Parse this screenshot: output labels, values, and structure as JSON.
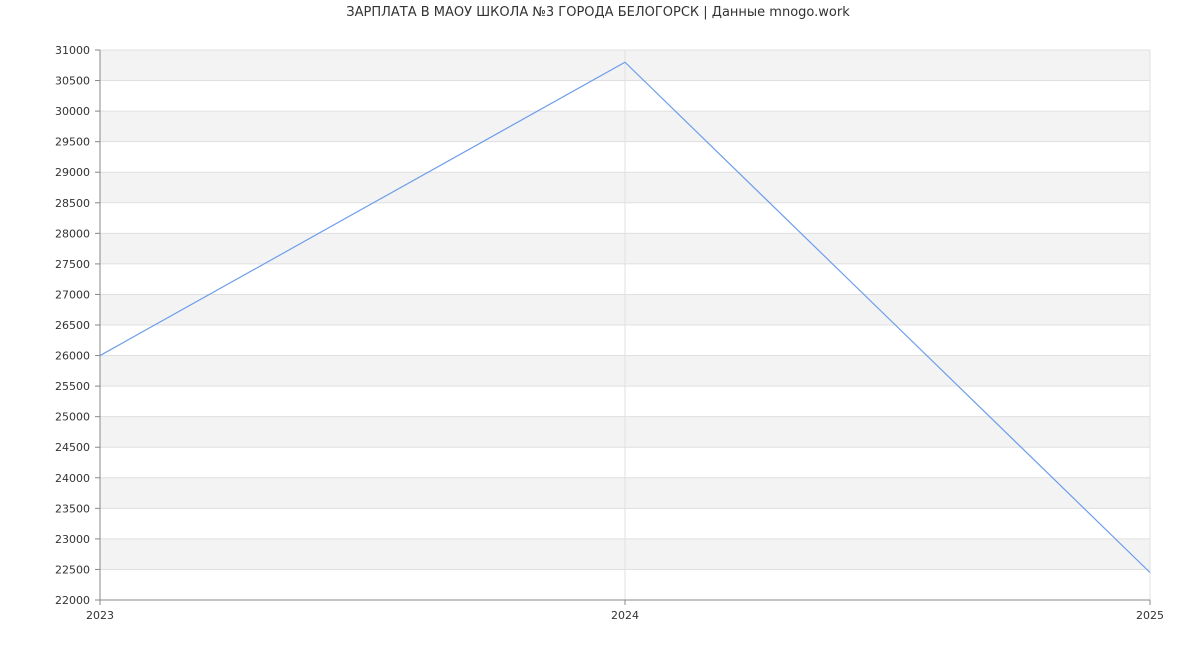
{
  "chart_data": {
    "type": "line",
    "title": "ЗАРПЛАТА В МАОУ ШКОЛА №3 ГОРОДА БЕЛОГОРСК | Данные mnogo.work",
    "xlabel": "",
    "ylabel": "",
    "x": [
      2023,
      2024,
      2025
    ],
    "x_tick_labels": [
      "2023",
      "2024",
      "2025"
    ],
    "series": [
      {
        "values": [
          26000,
          30800,
          22450
        ],
        "color": "#6d9eeb"
      }
    ],
    "ylim": [
      22000,
      31000
    ],
    "y_ticks": [
      22000,
      22500,
      23000,
      23500,
      24000,
      24500,
      25000,
      25500,
      26000,
      26500,
      27000,
      27500,
      28000,
      28500,
      29000,
      29500,
      30000,
      30500,
      31000
    ],
    "y_tick_labels": [
      "22000",
      "22500",
      "23000",
      "23500",
      "24000",
      "24500",
      "25000",
      "25500",
      "26000",
      "26500",
      "27000",
      "27500",
      "28000",
      "28500",
      "29000",
      "29500",
      "30000",
      "30500",
      "31000"
    ],
    "grid": true,
    "legend": "none",
    "colors": {
      "band": "#f3f3f3",
      "grid": "#e0e0e0",
      "axis": "#888888",
      "line": "#6d9eeb"
    }
  }
}
